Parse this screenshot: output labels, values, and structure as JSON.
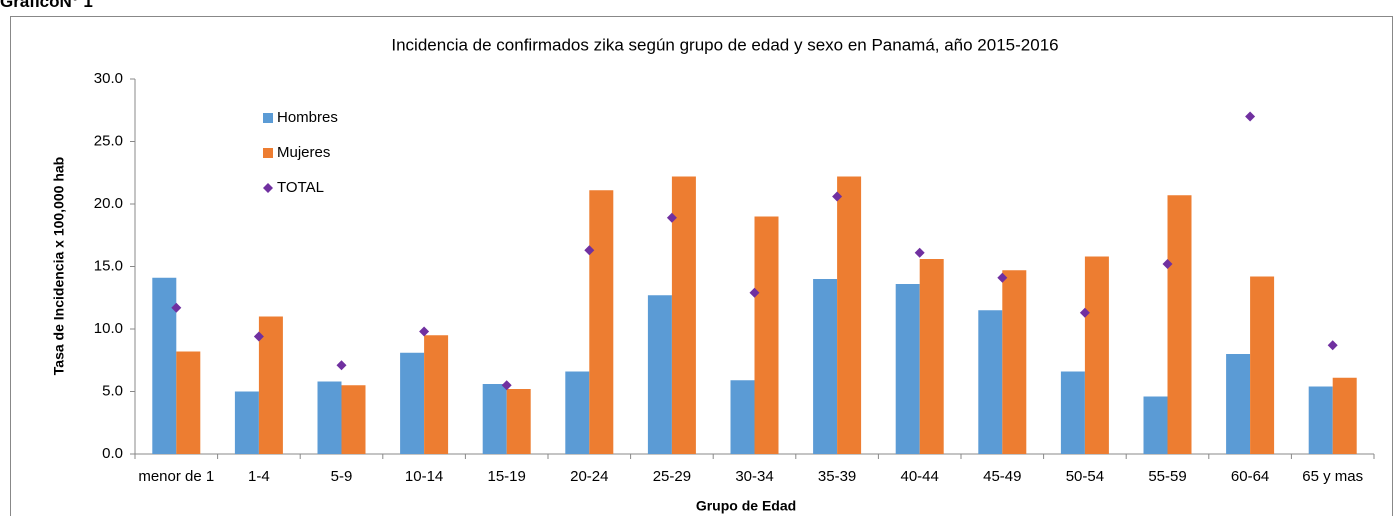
{
  "heading": "GráficoN° 1",
  "chart_data": {
    "type": "bar",
    "title": "Incidencia de confirmados zika según grupo de edad y sexo en Panamá, año 2015-2016",
    "x_label": "Grupo de Edad",
    "y_label": "Tasa de Incidencia x 100,000 hab",
    "categories": [
      "menor de 1",
      "1-4",
      "5-9",
      "10-14",
      "15-19",
      "20-24",
      "25-29",
      "30-34",
      "35-39",
      "40-44",
      "45-49",
      "50-54",
      "55-59",
      "60-64",
      "65 y mas"
    ],
    "series": [
      {
        "name": "Hombres",
        "color": "#5b9bd5",
        "type": "bar",
        "values": [
          14.1,
          5.0,
          5.8,
          8.1,
          5.6,
          6.6,
          12.7,
          5.9,
          14.0,
          13.6,
          11.5,
          6.6,
          4.6,
          8.0,
          5.4
        ]
      },
      {
        "name": "Mujeres",
        "color": "#ed7d31",
        "type": "bar",
        "values": [
          8.2,
          11.0,
          5.5,
          9.5,
          5.2,
          21.1,
          22.2,
          19.0,
          22.2,
          15.6,
          14.7,
          15.8,
          20.7,
          14.2,
          6.1
        ]
      },
      {
        "name": "TOTAL",
        "color": "#7030a0",
        "type": "scatter",
        "values": [
          11.7,
          9.4,
          7.1,
          9.8,
          5.5,
          16.3,
          18.9,
          12.9,
          20.6,
          16.1,
          14.1,
          11.3,
          15.2,
          27.0,
          8.7
        ]
      }
    ],
    "ylim": [
      0,
      30
    ],
    "yticks": [
      {
        "value": 0,
        "label": "0.0"
      },
      {
        "value": 5,
        "label": "5.0"
      },
      {
        "value": 10,
        "label": "10.0"
      },
      {
        "value": 15,
        "label": "15.0"
      },
      {
        "value": 20,
        "label": "20.0"
      },
      {
        "value": 25,
        "label": "25.0"
      },
      {
        "value": 30,
        "label": "30.0"
      }
    ],
    "grid": false,
    "legend": "top-left"
  }
}
